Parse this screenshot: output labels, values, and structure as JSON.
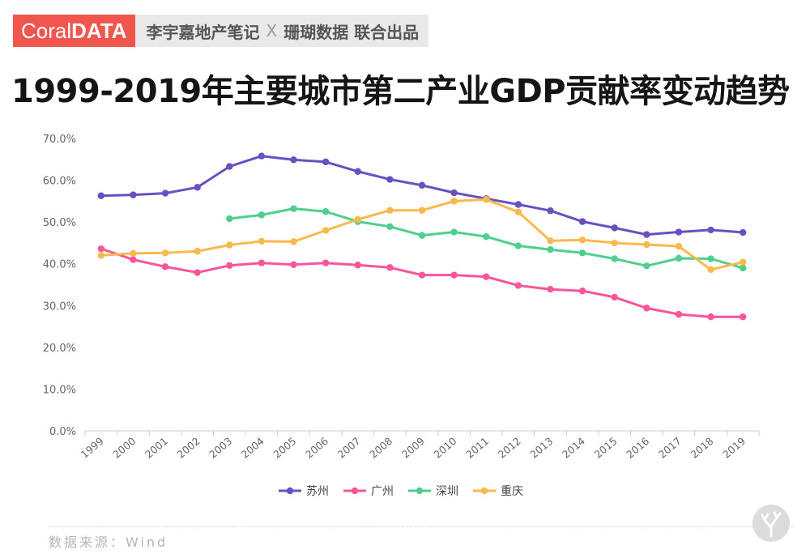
{
  "header": {
    "brand_left": "Coral",
    "brand_right": "DATA",
    "tag_left": "李宇嘉地产笔记",
    "tag_x": "X",
    "tag_right": "珊瑚数据 联合出品"
  },
  "footer": {
    "source": "数据来源：Wind"
  },
  "chart_data": {
    "type": "line",
    "title": "1999-2019年主要城市第二产业GDP贡献率变动趋势",
    "x": [
      "1999",
      "2000",
      "2001",
      "2002",
      "2003",
      "2004",
      "2005",
      "2006",
      "2007",
      "2008",
      "2009",
      "2010",
      "2011",
      "2012",
      "2013",
      "2014",
      "2015",
      "2016",
      "2017",
      "2018",
      "2019"
    ],
    "y_ticks": [
      "0.0%",
      "10.0%",
      "20.0%",
      "30.0%",
      "40.0%",
      "50.0%",
      "60.0%",
      "70.0%"
    ],
    "ylim": [
      0,
      70
    ],
    "grid": false,
    "legend_position": "bottom",
    "series": [
      {
        "name": "苏州",
        "color": "#6a4fc3",
        "values": [
          56.3,
          56.5,
          56.9,
          58.3,
          63.3,
          65.8,
          64.9,
          64.4,
          62.1,
          60.2,
          58.8,
          57.0,
          55.6,
          54.2,
          52.7,
          50.1,
          48.6,
          47.0,
          47.6,
          48.1,
          47.5
        ]
      },
      {
        "name": "广州",
        "color": "#f8559a",
        "values": [
          43.6,
          41.0,
          39.3,
          37.9,
          39.6,
          40.2,
          39.8,
          40.2,
          39.7,
          39.1,
          37.3,
          37.3,
          36.9,
          34.8,
          33.9,
          33.5,
          32.0,
          29.4,
          27.9,
          27.3,
          27.3
        ]
      },
      {
        "name": "深圳",
        "color": "#4fcf8e",
        "values": [
          null,
          null,
          null,
          null,
          50.8,
          51.7,
          53.2,
          52.5,
          50.1,
          48.9,
          46.8,
          47.6,
          46.5,
          44.3,
          43.4,
          42.6,
          41.2,
          39.5,
          41.3,
          41.2,
          39.0
        ]
      },
      {
        "name": "重庆",
        "color": "#f9b94c",
        "values": [
          42.0,
          42.5,
          42.6,
          43.0,
          44.5,
          45.4,
          45.3,
          48.0,
          50.6,
          52.8,
          52.8,
          55.0,
          55.4,
          52.4,
          45.5,
          45.7,
          45.0,
          44.6,
          44.2,
          38.6,
          40.4
        ]
      }
    ]
  },
  "colors": {
    "brand": "#f0564e",
    "axis": "#cccccc",
    "tick_text": "#666666"
  },
  "icons": {
    "watermark": "coral-branch-icon"
  }
}
